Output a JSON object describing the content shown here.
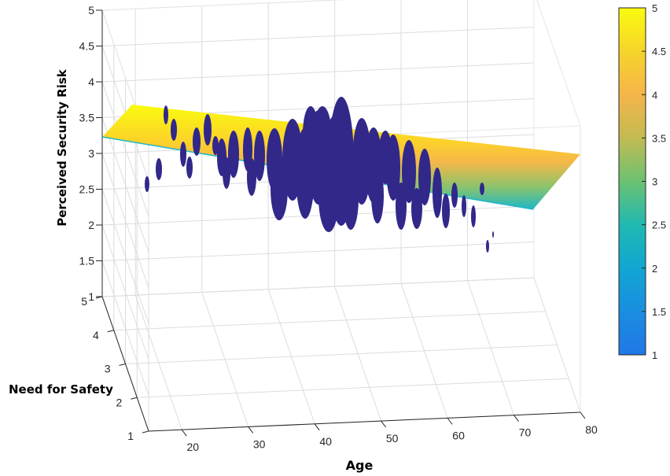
{
  "chart_data": {
    "type": "surface-scatter-3d",
    "xlabel": "Age",
    "ylabel": "Need for Safety",
    "zlabel": "Perceived Security Risk",
    "x_ticks": [
      "20",
      "30",
      "40",
      "50",
      "60",
      "70",
      "80"
    ],
    "y_ticks": [
      "1",
      "2",
      "3",
      "4",
      "5"
    ],
    "z_ticks": [
      "1",
      "1.5",
      "2",
      "2.5",
      "3",
      "3.5",
      "4",
      "4.5",
      "5"
    ],
    "xlim": [
      15,
      80
    ],
    "ylim": [
      1,
      5
    ],
    "zlim": [
      1,
      5
    ],
    "colorbar": {
      "ticks": [
        "1",
        "1.5",
        "2",
        "2.5",
        "3",
        "3.5",
        "4",
        "4.5",
        "5"
      ],
      "range": [
        1,
        5
      ],
      "colormap": [
        "#3e26a8",
        "#1a62e6",
        "#0e9ad1",
        "#23b6a3",
        "#79c05d",
        "#c6b83c",
        "#f9b932",
        "#f6dc22",
        "#f9fb0e"
      ]
    },
    "plane_color_high": "#f9fb0e",
    "plane_color_low": "#1fb7c7",
    "marker_color": "#31288a",
    "grid": true,
    "legend": "none"
  }
}
